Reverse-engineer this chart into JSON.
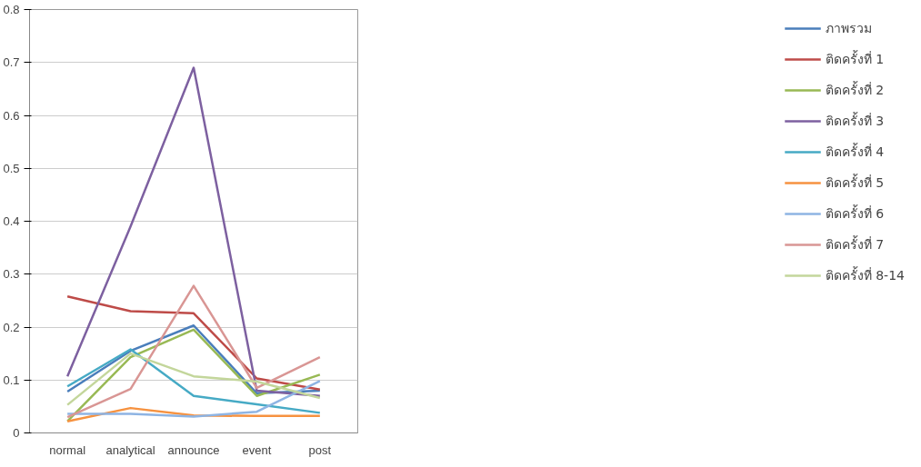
{
  "chart_data": {
    "type": "line",
    "categories": [
      "normal",
      "analytical",
      "announce",
      "event",
      "post"
    ],
    "ylim": [
      0,
      0.8
    ],
    "yticks": [
      0,
      0.1,
      0.2,
      0.3,
      0.4,
      0.5,
      0.6,
      0.7,
      0.8
    ],
    "grid": "y",
    "legend": "right",
    "marker": "none",
    "line_style": "solid",
    "series": [
      {
        "name": "ภาพรวม",
        "color": "#4a7ebb",
        "values": [
          0.078,
          0.155,
          0.203,
          0.075,
          0.08
        ]
      },
      {
        "name": "ติดครั้งที่ 1",
        "color": "#be4b48",
        "values": [
          0.258,
          0.23,
          0.226,
          0.103,
          0.082
        ]
      },
      {
        "name": "ติดครั้งที่ 2",
        "color": "#98b954",
        "values": [
          0.022,
          0.143,
          0.195,
          0.07,
          0.11
        ]
      },
      {
        "name": "ติดครั้งที่ 3",
        "color": "#7d60a0",
        "values": [
          0.107,
          0.39,
          0.69,
          0.08,
          0.07
        ]
      },
      {
        "name": "ติดครั้งที่ 4",
        "color": "#46aac5",
        "values": [
          0.088,
          0.158,
          0.07,
          0.054,
          0.038
        ]
      },
      {
        "name": "ติดครั้งที่ 5",
        "color": "#f69240",
        "values": [
          0.022,
          0.047,
          0.033,
          0.032,
          0.032
        ]
      },
      {
        "name": "ติดครั้งที่ 6",
        "color": "#8eb4e3",
        "values": [
          0.036,
          0.036,
          0.031,
          0.04,
          0.098
        ]
      },
      {
        "name": "ติดครั้งที่ 7",
        "color": "#d99694",
        "values": [
          0.03,
          0.083,
          0.278,
          0.085,
          0.143
        ]
      },
      {
        "name": "ติดครั้งที่ 8-14",
        "color": "#c3d69b",
        "values": [
          0.053,
          0.15,
          0.107,
          0.097,
          0.066
        ]
      }
    ]
  }
}
